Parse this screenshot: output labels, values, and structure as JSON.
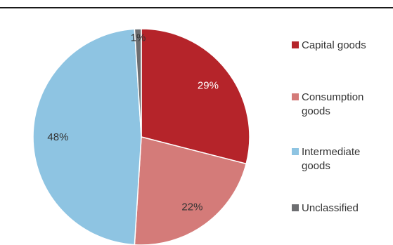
{
  "chart_data": {
    "type": "pie",
    "title": "",
    "legend_position": "right",
    "start_angle_deg": 0,
    "direction": "clockwise",
    "slices": [
      {
        "name": "Capital goods",
        "value": 29,
        "label": "29%",
        "color": "#B5242A",
        "label_color": "#ffffff"
      },
      {
        "name": "Consumption goods",
        "value": 22,
        "label": "22%",
        "color": "#D47B79",
        "label_color": "#333333"
      },
      {
        "name": "Intermediate goods",
        "value": 48,
        "label": "48%",
        "color": "#8EC4E2",
        "label_color": "#333333"
      },
      {
        "name": "Unclassified",
        "value": 1,
        "label": "1%",
        "color": "#6D6E71",
        "label_color": "#333333"
      }
    ],
    "legend": [
      {
        "lines": [
          "Capital goods"
        ],
        "color": "#B5242A"
      },
      {
        "lines": [
          "Consumption",
          "goods"
        ],
        "color": "#D47B79"
      },
      {
        "lines": [
          "Intermediate",
          "goods"
        ],
        "color": "#8EC4E2"
      },
      {
        "lines": [
          "Unclassified"
        ],
        "color": "#6D6E71"
      }
    ]
  }
}
